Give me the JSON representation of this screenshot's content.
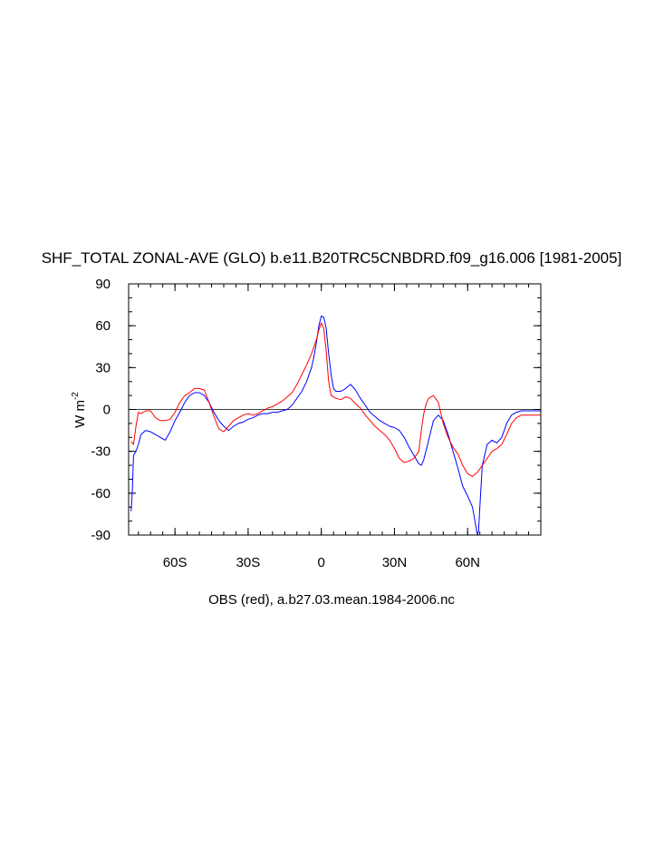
{
  "chart_data": {
    "type": "line",
    "title": "SHF_TOTAL ZONAL-AVE (GLO) b.e11.B20TRC5CNBDRD.f09_g16.006 [1981-2005]",
    "xlabel": "OBS (red), a.b27.03.mean.1984-2006.nc",
    "ylabel_main": "W m",
    "ylabel_sup": "-2",
    "xlim": [
      -79,
      90
    ],
    "ylim": [
      -90,
      90
    ],
    "xticks": [
      {
        "value": -60,
        "label": "60S"
      },
      {
        "value": -30,
        "label": "30S"
      },
      {
        "value": 0,
        "label": "0"
      },
      {
        "value": 30,
        "label": "30N"
      },
      {
        "value": 60,
        "label": "60N"
      }
    ],
    "yticks": [
      {
        "value": 90,
        "label": "90"
      },
      {
        "value": 60,
        "label": "60"
      },
      {
        "value": 30,
        "label": "30"
      },
      {
        "value": 0,
        "label": "0"
      },
      {
        "value": -30,
        "label": "-30"
      },
      {
        "value": -60,
        "label": "-60"
      },
      {
        "value": -90,
        "label": "-90"
      }
    ],
    "zero_line": true,
    "grid": false,
    "series": [
      {
        "color": "#0000ff",
        "x": [
          -78,
          -77.5,
          -77,
          -76,
          -75,
          -74,
          -72,
          -70,
          -68,
          -66,
          -64,
          -62,
          -60,
          -58,
          -56,
          -54,
          -52,
          -50,
          -48,
          -46,
          -44,
          -42,
          -40,
          -38,
          -36,
          -34,
          -32,
          -30,
          -28,
          -26,
          -24,
          -22,
          -20,
          -18,
          -16,
          -14,
          -12,
          -10,
          -8,
          -6,
          -4,
          -3,
          -2,
          -1,
          0,
          1,
          2,
          3,
          4,
          5,
          6,
          8,
          10,
          12,
          14,
          16,
          18,
          20,
          22,
          24,
          26,
          28,
          30,
          32,
          34,
          36,
          38,
          40,
          41,
          42,
          44,
          46,
          48,
          50,
          52,
          54,
          56,
          58,
          60,
          62,
          63,
          64,
          64.5,
          65,
          66,
          68,
          70,
          72,
          74,
          76,
          78,
          80,
          82,
          84,
          86,
          88,
          90
        ],
        "y": [
          -73,
          -60,
          -33,
          -30,
          -25,
          -18,
          -15,
          -16,
          -18,
          -20,
          -22,
          -16,
          -8,
          -2,
          5,
          10,
          12,
          12,
          10,
          5,
          -2,
          -8,
          -12,
          -15,
          -12,
          -10,
          -9,
          -7,
          -6,
          -4,
          -3,
          -3,
          -2,
          -2,
          -1,
          0,
          3,
          8,
          13,
          20,
          30,
          38,
          48,
          60,
          67,
          66,
          58,
          40,
          25,
          15,
          13,
          13,
          15,
          18,
          14,
          8,
          3,
          -2,
          -5,
          -8,
          -10,
          -12,
          -13,
          -15,
          -20,
          -27,
          -33,
          -39,
          -40,
          -36,
          -22,
          -8,
          -4,
          -8,
          -18,
          -30,
          -42,
          -55,
          -62,
          -70,
          -80,
          -90,
          -87,
          -70,
          -40,
          -25,
          -22,
          -24,
          -20,
          -10,
          -4,
          -2,
          -1,
          -1,
          -1,
          -1,
          -1
        ]
      },
      {
        "color": "#ff0000",
        "x": [
          -78,
          -77,
          -76,
          -75,
          -74,
          -72,
          -70,
          -68,
          -66,
          -64,
          -62,
          -60,
          -58,
          -56,
          -54,
          -52,
          -50,
          -48,
          -46,
          -44,
          -42,
          -40,
          -38,
          -36,
          -34,
          -32,
          -30,
          -28,
          -26,
          -24,
          -22,
          -20,
          -18,
          -16,
          -14,
          -12,
          -10,
          -8,
          -6,
          -4,
          -2,
          -1,
          0,
          1,
          2,
          3,
          4,
          6,
          8,
          10,
          12,
          14,
          16,
          18,
          20,
          22,
          24,
          26,
          28,
          30,
          32,
          34,
          36,
          38,
          40,
          41,
          42,
          43,
          44,
          46,
          48,
          50,
          52,
          54,
          56,
          58,
          60,
          62,
          64,
          66,
          68,
          70,
          72,
          74,
          76,
          78,
          80,
          82,
          84,
          86,
          88,
          90
        ],
        "y": [
          -23,
          -25,
          -12,
          -2,
          -3,
          -1,
          -1,
          -6,
          -8,
          -8,
          -7,
          -2,
          5,
          10,
          12,
          15,
          15,
          14,
          5,
          -5,
          -14,
          -16,
          -12,
          -8,
          -6,
          -4,
          -3,
          -4,
          -3,
          -1,
          1,
          2,
          4,
          6,
          9,
          12,
          18,
          25,
          32,
          40,
          50,
          57,
          62,
          58,
          42,
          20,
          10,
          8,
          7,
          9,
          8,
          4,
          1,
          -4,
          -8,
          -12,
          -15,
          -18,
          -22,
          -28,
          -35,
          -38,
          -37,
          -35,
          -30,
          -15,
          -3,
          4,
          8,
          10,
          5,
          -10,
          -20,
          -27,
          -32,
          -40,
          -46,
          -48,
          -45,
          -40,
          -35,
          -30,
          -28,
          -25,
          -18,
          -10,
          -6,
          -4,
          -4,
          -4,
          -4,
          -4
        ]
      }
    ]
  }
}
